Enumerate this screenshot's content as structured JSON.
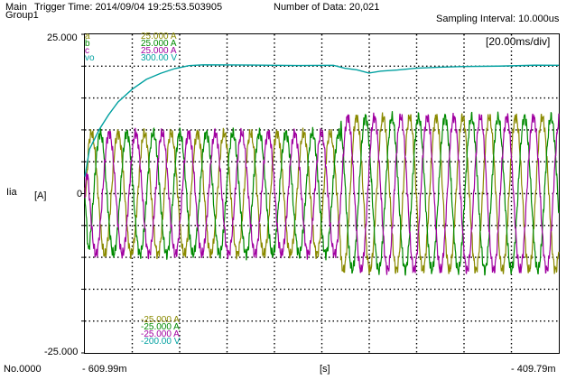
{
  "header": {
    "main_label": "Main",
    "group_label": "Group1",
    "trigger_time": "Trigger Time: 2014/09/04 19:25:53.503905",
    "number_of_data": "Number of Data: 20,021",
    "sampling_interval": "Sampling Interval:  10.000us"
  },
  "axis": {
    "y_top": "25.000",
    "y_bottom": "-25.000",
    "y_zero": "0",
    "channel_name": "Iia",
    "unit": "[A]",
    "x_unit": "[s]",
    "x_start": "- 609.99m",
    "x_end": "- 409.79m",
    "record_no": "No.0000",
    "div_label": "[20.00ms/div]"
  },
  "legend": [
    {
      "name": "a",
      "top": "25.000 A",
      "bottom": "-25.000 A",
      "color": "#8a8a00"
    },
    {
      "name": "b",
      "top": "25.000 A",
      "bottom": "-25.000 A",
      "color": "#008a00"
    },
    {
      "name": "c",
      "top": "25.000 A",
      "bottom": "-25.000 A",
      "color": "#a000a0"
    },
    {
      "name": "vo",
      "top": "300.00 V",
      "bottom": "-200.00 V",
      "color": "#00a0a0"
    }
  ],
  "chart_data": {
    "type": "line",
    "x_range_ms": [
      -609.99,
      -409.79
    ],
    "ylim": [
      -25,
      25
    ],
    "grid": true,
    "divisions": {
      "x": 10,
      "y": 10
    },
    "series": [
      {
        "name": "a",
        "unit": "A",
        "color": "#8a8a00",
        "phase_deg": 0
      },
      {
        "name": "b",
        "unit": "A",
        "color": "#008a00",
        "phase_deg": -120
      },
      {
        "name": "c",
        "unit": "A",
        "color": "#a000a0",
        "phase_deg": 120
      },
      {
        "name": "vo",
        "unit": "V",
        "color": "#00a0a0"
      }
    ],
    "current_waveform": {
      "period_ms": 11.2,
      "amplitude_before_step_A": 9.5,
      "amplitude_after_step_A": 12.0,
      "step_time_ms": -502
    },
    "vo_waveform": {
      "points_ms_V": [
        [
          -609.99,
          40
        ],
        [
          -608,
          105
        ],
        [
          -604,
          150
        ],
        [
          -600,
          185
        ],
        [
          -596,
          215
        ],
        [
          -590,
          245
        ],
        [
          -584,
          268
        ],
        [
          -578,
          282
        ],
        [
          -572,
          293
        ],
        [
          -566,
          300
        ],
        [
          -560,
          302
        ],
        [
          -540,
          302
        ],
        [
          -520,
          302
        ],
        [
          -505,
          301
        ],
        [
          -500,
          296
        ],
        [
          -495,
          290
        ],
        [
          -490,
          285
        ],
        [
          -485,
          287
        ],
        [
          -478,
          292
        ],
        [
          -470,
          296
        ],
        [
          -460,
          298
        ],
        [
          -450,
          299
        ],
        [
          -435,
          301
        ],
        [
          -420,
          301
        ],
        [
          -409.79,
          301
        ]
      ]
    }
  }
}
